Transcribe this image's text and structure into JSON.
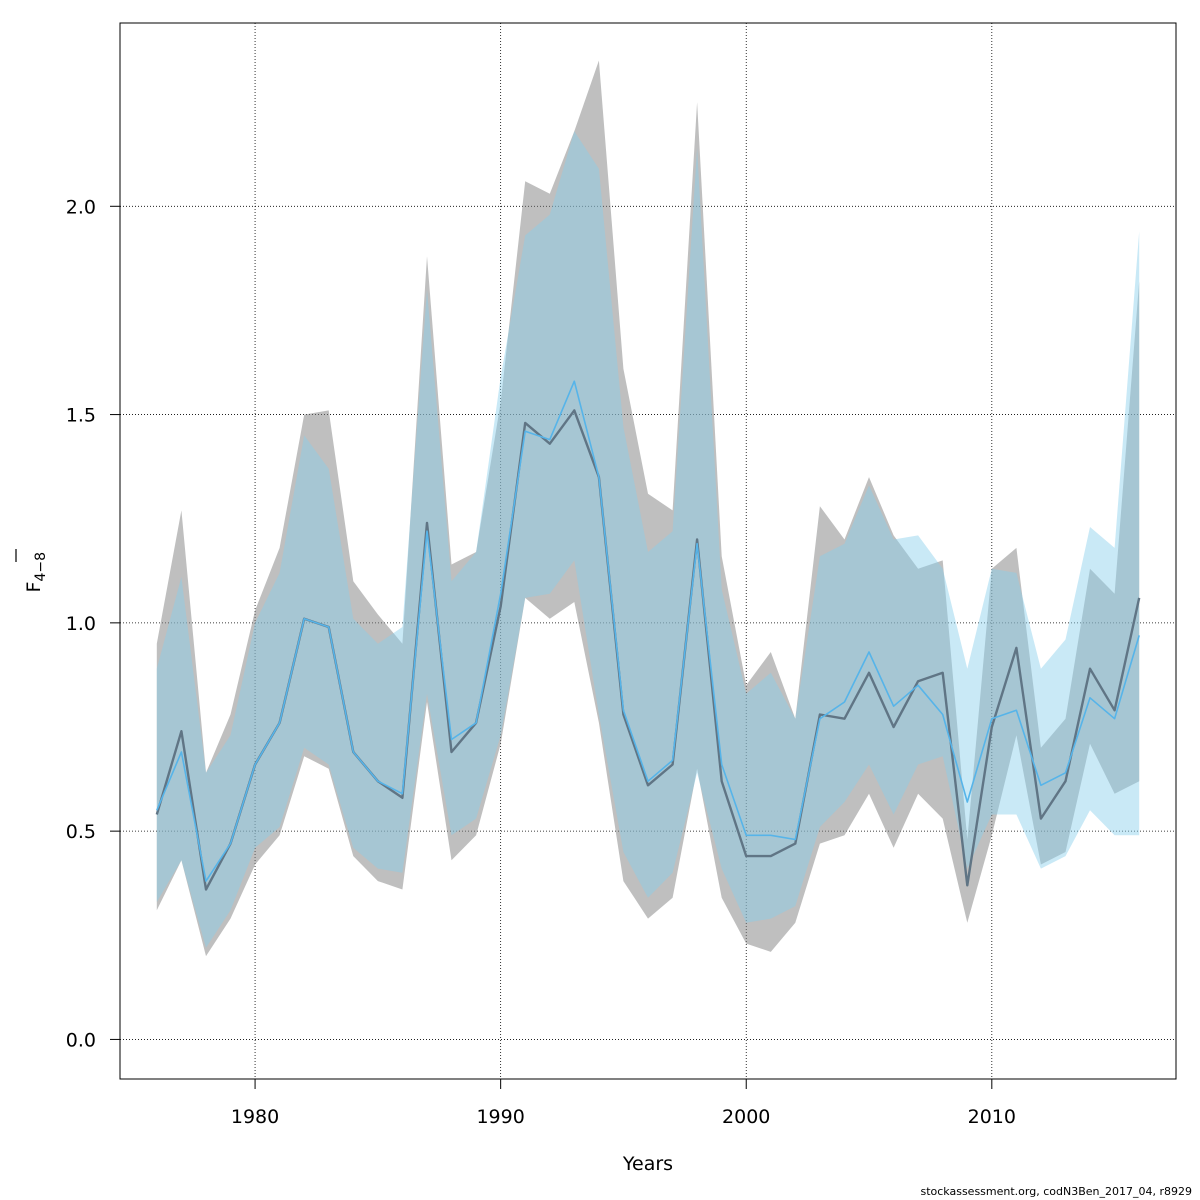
{
  "footer": "stockassessment.org, codN3Ben_2017_04, r8929",
  "chart_data": {
    "type": "line",
    "title": "",
    "xlabel": "Years",
    "ylabel_main": "F",
    "ylabel_sub": "4−8",
    "xlim": [
      1974.5,
      2017.5
    ],
    "ylim": [
      -0.095,
      2.44
    ],
    "xticks": [
      1980,
      1990,
      2000,
      2010
    ],
    "yticks": [
      0.0,
      0.5,
      1.0,
      1.5,
      2.0
    ],
    "xtick_labels": [
      "1980",
      "1990",
      "2000",
      "2010"
    ],
    "ytick_labels": [
      "0.0",
      "0.5",
      "1.0",
      "1.5",
      "2.0"
    ],
    "grid": true,
    "x": [
      1976,
      1977,
      1978,
      1979,
      1980,
      1981,
      1982,
      1983,
      1984,
      1985,
      1986,
      1987,
      1988,
      1989,
      1990,
      1991,
      1992,
      1993,
      1994,
      1995,
      1996,
      1997,
      1998,
      1999,
      2000,
      2001,
      2002,
      2003,
      2004,
      2005,
      2006,
      2007,
      2008,
      2009,
      2010,
      2011,
      2012,
      2013,
      2014,
      2015,
      2016
    ],
    "series": [
      {
        "color": "#607585",
        "band_color": "#808080",
        "values": [
          0.54,
          0.74,
          0.36,
          0.47,
          0.66,
          0.76,
          1.01,
          0.99,
          0.69,
          0.62,
          0.58,
          1.24,
          0.69,
          0.76,
          1.04,
          1.48,
          1.43,
          1.51,
          1.35,
          0.78,
          0.61,
          0.66,
          1.2,
          0.62,
          0.44,
          0.44,
          0.47,
          0.78,
          0.77,
          0.88,
          0.75,
          0.86,
          0.88,
          0.37,
          0.75,
          0.94,
          0.53,
          0.62,
          0.89,
          0.79,
          1.06
        ],
        "lower": [
          0.31,
          0.43,
          0.2,
          0.29,
          0.42,
          0.49,
          0.68,
          0.65,
          0.44,
          0.38,
          0.36,
          0.81,
          0.43,
          0.49,
          0.71,
          1.06,
          1.01,
          1.05,
          0.76,
          0.38,
          0.29,
          0.34,
          0.65,
          0.34,
          0.23,
          0.21,
          0.28,
          0.47,
          0.49,
          0.59,
          0.46,
          0.59,
          0.53,
          0.28,
          0.49,
          0.73,
          0.42,
          0.45,
          0.71,
          0.59,
          0.62
        ],
        "upper": [
          0.95,
          1.27,
          0.64,
          0.78,
          1.03,
          1.18,
          1.5,
          1.51,
          1.1,
          1.02,
          0.95,
          1.88,
          1.14,
          1.17,
          1.53,
          2.06,
          2.03,
          2.18,
          2.35,
          1.61,
          1.31,
          1.27,
          2.25,
          1.16,
          0.85,
          0.93,
          0.77,
          1.28,
          1.2,
          1.35,
          1.21,
          1.13,
          1.15,
          0.48,
          1.13,
          1.18,
          0.7,
          0.77,
          1.13,
          1.07,
          1.82
        ]
      },
      {
        "color": "#56b4e9",
        "band_color": "#87ceeb",
        "values": [
          0.55,
          0.69,
          0.38,
          0.47,
          0.66,
          0.76,
          1.01,
          0.99,
          0.69,
          0.62,
          0.59,
          1.22,
          0.72,
          0.76,
          1.07,
          1.46,
          1.44,
          1.58,
          1.35,
          0.79,
          0.62,
          0.67,
          1.19,
          0.66,
          0.49,
          0.49,
          0.48,
          0.77,
          0.81,
          0.93,
          0.8,
          0.85,
          0.78,
          0.57,
          0.77,
          0.79,
          0.61,
          0.64,
          0.82,
          0.77,
          0.97
        ],
        "lower": [
          0.33,
          0.43,
          0.22,
          0.31,
          0.46,
          0.51,
          0.7,
          0.66,
          0.46,
          0.41,
          0.4,
          0.83,
          0.49,
          0.53,
          0.73,
          1.06,
          1.07,
          1.15,
          0.78,
          0.45,
          0.34,
          0.4,
          0.64,
          0.41,
          0.28,
          0.29,
          0.32,
          0.51,
          0.57,
          0.66,
          0.54,
          0.66,
          0.68,
          0.41,
          0.54,
          0.54,
          0.41,
          0.44,
          0.55,
          0.49,
          0.49
        ],
        "upper": [
          0.89,
          1.11,
          0.64,
          0.73,
          1.0,
          1.12,
          1.45,
          1.37,
          1.01,
          0.95,
          0.99,
          1.8,
          1.1,
          1.17,
          1.59,
          1.93,
          1.98,
          2.18,
          2.09,
          1.47,
          1.17,
          1.22,
          2.14,
          1.08,
          0.83,
          0.88,
          0.77,
          1.16,
          1.19,
          1.33,
          1.2,
          1.21,
          1.13,
          0.89,
          1.13,
          1.12,
          0.89,
          0.96,
          1.23,
          1.18,
          1.94
        ]
      }
    ]
  }
}
